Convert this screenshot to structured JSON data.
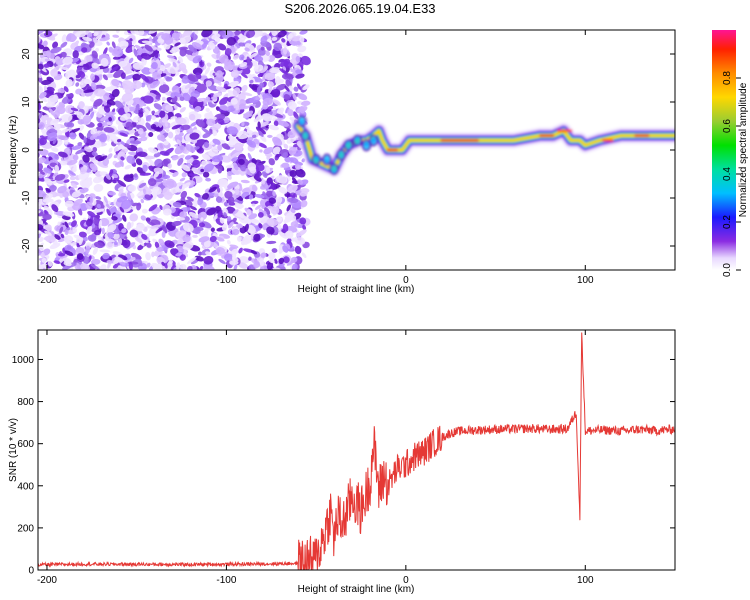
{
  "title": "S206.2026.065.19.04.E33",
  "spectrogram": {
    "xlabel": "Height of straight line (km)",
    "ylabel": "Frequency (Hz)",
    "xlim": [
      -205,
      150
    ],
    "ylim": [
      -25,
      25
    ],
    "xticks": [
      -200,
      -100,
      0,
      100
    ],
    "yticks": [
      -20,
      -10,
      0,
      10,
      20
    ],
    "noise_region": [
      -205,
      -60
    ],
    "colorbar": {
      "label": "Normalized spectral amplitude",
      "range": [
        0.0,
        1.0
      ],
      "ticks": [
        "0.0",
        "0.2",
        "0.4",
        "0.6",
        "0.8"
      ]
    }
  },
  "chart_data": {
    "type": "line",
    "title": "S206.2026.065.19.04.E33",
    "xlabel": "Height of straight line (km)",
    "ylabel": "SNR (10 * v/v)",
    "xlim": [
      -205,
      150
    ],
    "ylim": [
      0,
      1140
    ],
    "xticks": [
      -200,
      -100,
      0,
      100
    ],
    "yticks": [
      0,
      200,
      400,
      600,
      800,
      1000
    ],
    "series": [
      {
        "name": "SNR",
        "color": "#e53935",
        "x": [
          -205,
          -180,
          -150,
          -120,
          -90,
          -70,
          -60,
          -50,
          -45,
          -42,
          -40,
          -38,
          -35,
          -30,
          -25,
          -20,
          -18,
          -15,
          -12,
          -10,
          -5,
          0,
          5,
          10,
          15,
          20,
          25,
          30,
          40,
          50,
          60,
          70,
          80,
          90,
          95,
          97,
          98,
          100,
          110,
          120,
          130,
          140,
          150
        ],
        "values": [
          25,
          28,
          27,
          26,
          28,
          30,
          32,
          50,
          180,
          280,
          150,
          250,
          220,
          350,
          280,
          420,
          600,
          380,
          450,
          400,
          480,
          500,
          540,
          560,
          600,
          630,
          650,
          660,
          665,
          668,
          670,
          672,
          668,
          670,
          750,
          240,
          1140,
          660,
          665,
          660,
          668,
          662,
          670
        ]
      }
    ]
  }
}
